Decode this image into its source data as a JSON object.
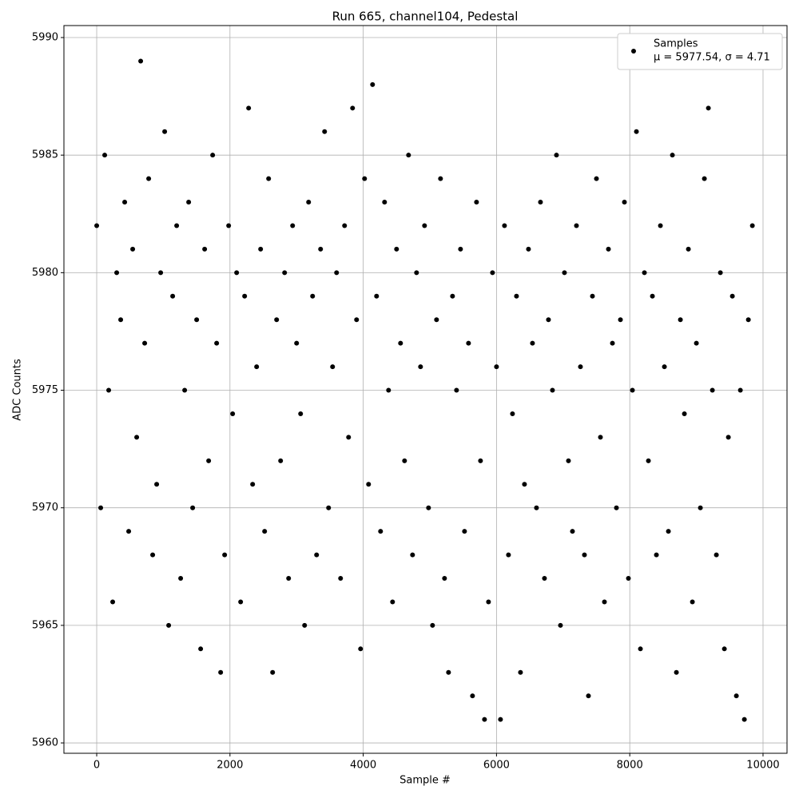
{
  "chart_data": {
    "type": "scatter",
    "title": "Run 665, channel104, Pedestal",
    "xlabel": "Sample #",
    "ylabel": "ADC Counts",
    "legend_text": "μ = 5977.54, σ = 4.71",
    "legend": "upper right",
    "grid": true,
    "xlim": [
      -492,
      10360
    ],
    "ylim": [
      5959.56,
      5990.51
    ],
    "xticks": [
      0,
      2000,
      4000,
      6000,
      8000,
      10000
    ],
    "yticks": [
      5960,
      5965,
      5970,
      5975,
      5980,
      5985,
      5990
    ],
    "series": [
      {
        "name": "Samples",
        "color": "#000000",
        "x": [
          0,
          60,
          120,
          180,
          240,
          300,
          360,
          420,
          480,
          540,
          600,
          660,
          720,
          780,
          840,
          900,
          960,
          1020,
          1080,
          1140,
          1200,
          1260,
          1320,
          1380,
          1440,
          1500,
          1560,
          1620,
          1680,
          1740,
          1800,
          1860,
          1920,
          1980,
          2040,
          2100,
          2160,
          2220,
          2280,
          2340,
          2400,
          2460,
          2520,
          2580,
          2640,
          2700,
          2760,
          2820,
          2880,
          2940,
          3000,
          3060,
          3120,
          3180,
          3240,
          3300,
          3360,
          3420,
          3480,
          3540,
          3600,
          3660,
          3720,
          3780,
          3840,
          3900,
          3960,
          4020,
          4080,
          4140,
          4200,
          4260,
          4320,
          4380,
          4440,
          4500,
          4560,
          4620,
          4680,
          4740,
          4800,
          4860,
          4920,
          4980,
          5040,
          5100,
          5160,
          5220,
          5280,
          5340,
          5400,
          5460,
          5520,
          5580,
          5640,
          5700,
          5760,
          5820,
          5880,
          5940,
          6000,
          6060,
          6120,
          6180,
          6240,
          6300,
          6360,
          6420,
          6480,
          6540,
          6600,
          6660,
          6720,
          6780,
          6840,
          6900,
          6960,
          7020,
          7080,
          7140,
          7200,
          7260,
          7320,
          7380,
          7440,
          7500,
          7560,
          7620,
          7680,
          7740,
          7800,
          7860,
          7920,
          7980,
          8040,
          8100,
          8160,
          8220,
          8280,
          8340,
          8400,
          8460,
          8520,
          8580,
          8640,
          8700,
          8760,
          8820,
          8880,
          8940,
          9000,
          9060,
          9120,
          9180,
          9240,
          9300,
          9360,
          9420,
          9480,
          9540,
          9600,
          9660,
          9720,
          9780,
          9840
        ],
        "values": [
          5982,
          5970,
          5985,
          5975,
          5966,
          5980,
          5978,
          5983,
          5969,
          5981,
          5973,
          5989,
          5977,
          5984,
          5968,
          5971,
          5980,
          5986,
          5965,
          5979,
          5982,
          5967,
          5975,
          5983,
          5970,
          5978,
          5964,
          5981,
          5972,
          5985,
          5977,
          5963,
          5968,
          5982,
          5974,
          5980,
          5966,
          5979,
          5987,
          5971,
          5976,
          5981,
          5969,
          5984,
          5963,
          5978,
          5972,
          5980,
          5967,
          5982,
          5977,
          5974,
          5965,
          5983,
          5979,
          5968,
          5981,
          5986,
          5970,
          5976,
          5980,
          5967,
          5982,
          5973,
          5987,
          5978,
          5964,
          5984,
          5971,
          5988,
          5979,
          5969,
          5983,
          5975,
          5966,
          5981,
          5977,
          5972,
          5985,
          5968,
          5980,
          5976,
          5982,
          5970,
          5965,
          5978,
          5984,
          5967,
          5963,
          5979,
          5975,
          5981,
          5969,
          5977,
          5962,
          5983,
          5972,
          5961,
          5966,
          5980,
          5976,
          5961,
          5982,
          5968,
          5974,
          5979,
          5963,
          5971,
          5981,
          5977,
          5970,
          5983,
          5967,
          5978,
          5975,
          5985,
          5965,
          5980,
          5972,
          5969,
          5982,
          5976,
          5968,
          5962,
          5979,
          5984,
          5973,
          5966,
          5981,
          5977,
          5970,
          5978,
          5983,
          5967,
          5975,
          5986,
          5964,
          5980,
          5972,
          5979,
          5968,
          5982,
          5976,
          5969,
          5985,
          5963,
          5978,
          5974,
          5981,
          5966,
          5977,
          5970,
          5984,
          5987,
          5975,
          5968,
          5980,
          5964,
          5973,
          5979,
          5962,
          5975,
          5961,
          5978,
          5982
        ]
      }
    ]
  }
}
